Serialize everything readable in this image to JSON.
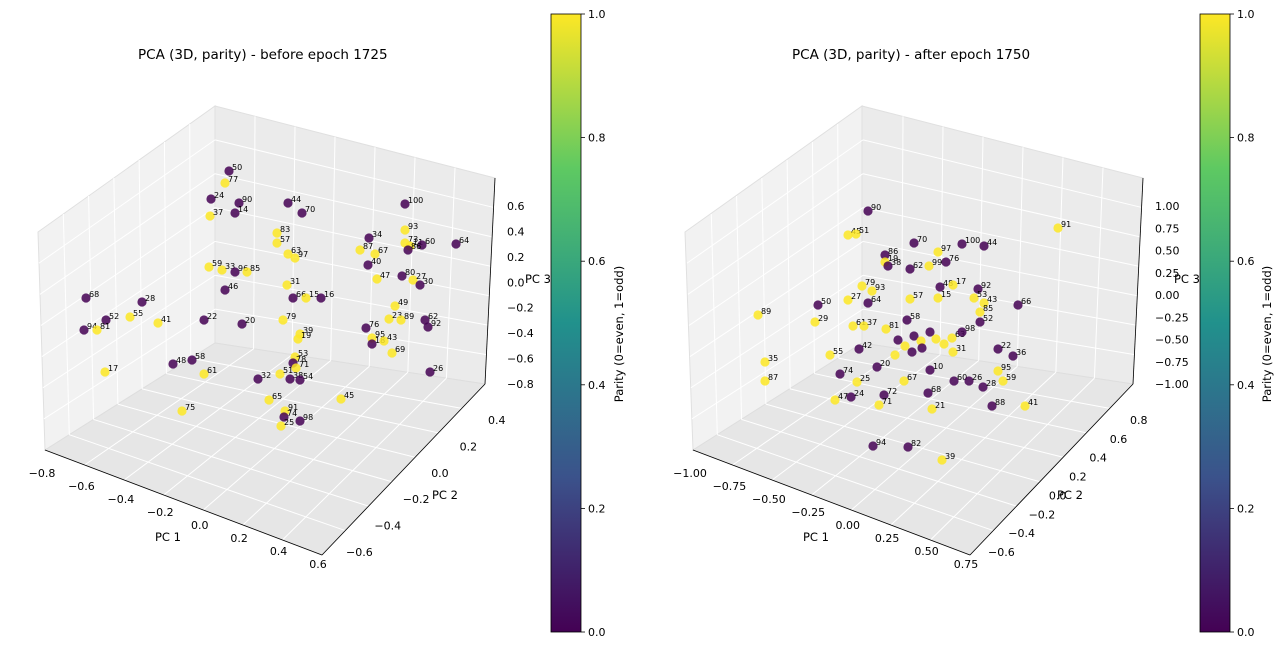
{
  "chart_data": [
    {
      "type": "scatter",
      "projection": "3d",
      "title": "PCA (3D, parity) - before epoch 1725",
      "xlabel": "PC 1",
      "ylabel": "PC 2",
      "zlabel": "PC 3",
      "x_ticks": [
        "−0.8",
        "−0.6",
        "−0.4",
        "−0.2",
        "0.0",
        "0.2",
        "0.4",
        "0.6"
      ],
      "y_ticks": [
        "−0.6",
        "−0.4",
        "−0.2",
        "0.0",
        "0.2",
        "0.4"
      ],
      "z_ticks": [
        "0.6",
        "0.4",
        "0.2",
        "0.0",
        "−0.2",
        "−0.4",
        "−0.6",
        "−0.8"
      ],
      "xlim": [
        -0.8,
        0.6
      ],
      "ylim": [
        -0.6,
        0.4
      ],
      "zlim": [
        -0.8,
        0.6
      ],
      "grid": true,
      "color_by": "parity",
      "colors": {
        "even": "#440154",
        "odd": "#fde725"
      },
      "points": [
        {
          "label": "50",
          "parity": 0
        },
        {
          "label": "77",
          "parity": 1
        },
        {
          "label": "24",
          "parity": 0
        },
        {
          "label": "90",
          "parity": 0
        },
        {
          "label": "37",
          "parity": 1
        },
        {
          "label": "44",
          "parity": 0
        },
        {
          "label": "14",
          "parity": 0
        },
        {
          "label": "70",
          "parity": 0
        },
        {
          "label": "100",
          "parity": 0
        },
        {
          "label": "83",
          "parity": 1
        },
        {
          "label": "57",
          "parity": 1
        },
        {
          "label": "93",
          "parity": 1
        },
        {
          "label": "34",
          "parity": 0
        },
        {
          "label": "73",
          "parity": 1
        },
        {
          "label": "11",
          "parity": 1
        },
        {
          "label": "60",
          "parity": 0
        },
        {
          "label": "64",
          "parity": 0
        },
        {
          "label": "63",
          "parity": 1
        },
        {
          "label": "97",
          "parity": 1
        },
        {
          "label": "87",
          "parity": 1
        },
        {
          "label": "67",
          "parity": 1
        },
        {
          "label": "86",
          "parity": 0
        },
        {
          "label": "59",
          "parity": 1
        },
        {
          "label": "33",
          "parity": 1
        },
        {
          "label": "96",
          "parity": 0
        },
        {
          "label": "85",
          "parity": 1
        },
        {
          "label": "40",
          "parity": 0
        },
        {
          "label": "80",
          "parity": 0
        },
        {
          "label": "27",
          "parity": 1
        },
        {
          "label": "47",
          "parity": 1
        },
        {
          "label": "30",
          "parity": 0
        },
        {
          "label": "46",
          "parity": 0
        },
        {
          "label": "31",
          "parity": 1
        },
        {
          "label": "66",
          "parity": 0
        },
        {
          "label": "15",
          "parity": 1
        },
        {
          "label": "16",
          "parity": 0
        },
        {
          "label": "49",
          "parity": 1
        },
        {
          "label": "68",
          "parity": 0
        },
        {
          "label": "28",
          "parity": 0
        },
        {
          "label": "52",
          "parity": 0
        },
        {
          "label": "55",
          "parity": 1
        },
        {
          "label": "41",
          "parity": 1
        },
        {
          "label": "94",
          "parity": 0
        },
        {
          "label": "81",
          "parity": 1
        },
        {
          "label": "22",
          "parity": 0
        },
        {
          "label": "20",
          "parity": 0
        },
        {
          "label": "79",
          "parity": 1
        },
        {
          "label": "39",
          "parity": 1
        },
        {
          "label": "19",
          "parity": 1
        },
        {
          "label": "23",
          "parity": 1
        },
        {
          "label": "89",
          "parity": 1
        },
        {
          "label": "62",
          "parity": 0
        },
        {
          "label": "92",
          "parity": 0
        },
        {
          "label": "76",
          "parity": 0
        },
        {
          "label": "95",
          "parity": 1
        },
        {
          "label": "18",
          "parity": 0
        },
        {
          "label": "43",
          "parity": 1
        },
        {
          "label": "69",
          "parity": 1
        },
        {
          "label": "26",
          "parity": 0
        },
        {
          "label": "17",
          "parity": 1
        },
        {
          "label": "48",
          "parity": 0
        },
        {
          "label": "58",
          "parity": 0
        },
        {
          "label": "61",
          "parity": 1
        },
        {
          "label": "53",
          "parity": 1
        },
        {
          "label": "78",
          "parity": 0
        },
        {
          "label": "71",
          "parity": 1
        },
        {
          "label": "32",
          "parity": 0
        },
        {
          "label": "51",
          "parity": 1
        },
        {
          "label": "38",
          "parity": 0
        },
        {
          "label": "54",
          "parity": 0
        },
        {
          "label": "45",
          "parity": 1
        },
        {
          "label": "65",
          "parity": 1
        },
        {
          "label": "75",
          "parity": 1
        },
        {
          "label": "91",
          "parity": 1
        },
        {
          "label": "74",
          "parity": 0
        },
        {
          "label": "98",
          "parity": 0
        },
        {
          "label": "25",
          "parity": 1
        }
      ]
    },
    {
      "type": "scatter",
      "projection": "3d",
      "title": "PCA (3D, parity) - after epoch 1750",
      "xlabel": "PC 1",
      "ylabel": "PC 2",
      "zlabel": "PC 3",
      "x_ticks": [
        "−1.00",
        "−0.75",
        "−0.50",
        "−0.25",
        "0.00",
        "0.25",
        "0.50",
        "0.75"
      ],
      "y_ticks": [
        "−0.6",
        "−0.4",
        "−0.2",
        "0.0",
        "0.2",
        "0.4",
        "0.6",
        "0.8"
      ],
      "z_ticks": [
        "1.00",
        "0.75",
        "0.50",
        "0.25",
        "0.00",
        "−0.25",
        "−0.50",
        "−0.75",
        "−1.00"
      ],
      "xlim": [
        -1.0,
        0.75
      ],
      "ylim": [
        -0.6,
        0.8
      ],
      "zlim": [
        -1.0,
        1.0
      ],
      "grid": true,
      "color_by": "parity",
      "colors": {
        "even": "#440154",
        "odd": "#fde725"
      },
      "points": [
        {
          "label": "90",
          "parity": 0
        },
        {
          "label": "45",
          "parity": 1
        },
        {
          "label": "51",
          "parity": 1
        },
        {
          "label": "70",
          "parity": 0
        },
        {
          "label": "100",
          "parity": 0
        },
        {
          "label": "44",
          "parity": 0
        },
        {
          "label": "91",
          "parity": 1
        },
        {
          "label": "86",
          "parity": 0
        },
        {
          "label": "97",
          "parity": 1
        },
        {
          "label": "19",
          "parity": 1
        },
        {
          "label": "38",
          "parity": 0
        },
        {
          "label": "62",
          "parity": 0
        },
        {
          "label": "99",
          "parity": 1
        },
        {
          "label": "76",
          "parity": 0
        },
        {
          "label": "89",
          "parity": 1
        },
        {
          "label": "50",
          "parity": 0
        },
        {
          "label": "27",
          "parity": 1
        },
        {
          "label": "79",
          "parity": 1
        },
        {
          "label": "93",
          "parity": 1
        },
        {
          "label": "64",
          "parity": 0
        },
        {
          "label": "48",
          "parity": 0
        },
        {
          "label": "17",
          "parity": 1
        },
        {
          "label": "15",
          "parity": 1
        },
        {
          "label": "57",
          "parity": 1
        },
        {
          "label": "92",
          "parity": 0
        },
        {
          "label": "53",
          "parity": 1
        },
        {
          "label": "43",
          "parity": 1
        },
        {
          "label": "66",
          "parity": 0
        },
        {
          "label": "29",
          "parity": 1
        },
        {
          "label": "61",
          "parity": 1
        },
        {
          "label": "37",
          "parity": 1
        },
        {
          "label": "58",
          "parity": 0
        },
        {
          "label": "81",
          "parity": 1
        },
        {
          "label": "85",
          "parity": 1
        },
        {
          "label": "52",
          "parity": 0
        },
        {
          "label": "35",
          "parity": 1
        },
        {
          "label": "87",
          "parity": 1
        },
        {
          "label": "55",
          "parity": 1
        },
        {
          "label": "42",
          "parity": 0
        },
        {
          "label": "63",
          "parity": 1
        },
        {
          "label": "98",
          "parity": 0
        },
        {
          "label": "31",
          "parity": 1
        },
        {
          "label": "22",
          "parity": 0
        },
        {
          "label": "36",
          "parity": 0
        },
        {
          "label": "74",
          "parity": 0
        },
        {
          "label": "20",
          "parity": 0
        },
        {
          "label": "25",
          "parity": 1
        },
        {
          "label": "67",
          "parity": 1
        },
        {
          "label": "10",
          "parity": 0
        },
        {
          "label": "72",
          "parity": 0
        },
        {
          "label": "47",
          "parity": 1
        },
        {
          "label": "24",
          "parity": 0
        },
        {
          "label": "71",
          "parity": 1
        },
        {
          "label": "68",
          "parity": 0
        },
        {
          "label": "60",
          "parity": 0
        },
        {
          "label": "26",
          "parity": 0
        },
        {
          "label": "28",
          "parity": 0
        },
        {
          "label": "95",
          "parity": 1
        },
        {
          "label": "59",
          "parity": 1
        },
        {
          "label": "88",
          "parity": 0
        },
        {
          "label": "41",
          "parity": 1
        },
        {
          "label": "21",
          "parity": 1
        },
        {
          "label": "94",
          "parity": 0
        },
        {
          "label": "82",
          "parity": 0
        },
        {
          "label": "39",
          "parity": 1
        }
      ]
    }
  ],
  "colorbars": [
    {
      "label": "Parity (0=even, 1=odd)",
      "ticks": [
        "1.0",
        "0.8",
        "0.6",
        "0.4",
        "0.2",
        "0.0"
      ],
      "range": [
        0.0,
        1.0
      ]
    },
    {
      "label": "Parity (0=even, 1=odd)",
      "ticks": [
        "1.0",
        "0.8",
        "0.6",
        "0.4",
        "0.2",
        "0.0"
      ],
      "range": [
        0.0,
        1.0
      ]
    }
  ]
}
